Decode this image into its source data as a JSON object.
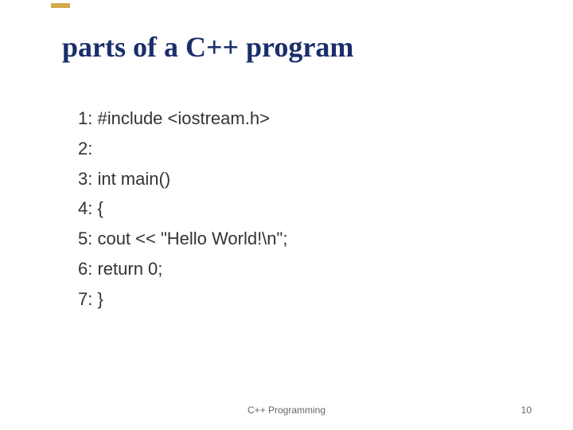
{
  "slide": {
    "title": "parts of a C++ program",
    "title_color": "#1a2e6b",
    "title_fontsize": 36,
    "accent_color": "#d4a84b",
    "code_lines": [
      "1: #include <iostream.h>",
      "2:",
      "3: int main()",
      "4: {",
      "5: cout << \"Hello World!\\n\";",
      "6: return 0;",
      "7: }"
    ],
    "code_fontsize": 22,
    "code_color": "#333333",
    "line_height": 1.72,
    "background_color": "#ffffff"
  },
  "footer": {
    "label": "C++ Programming",
    "page_number": "10",
    "font_size": 12,
    "color": "#666666"
  }
}
